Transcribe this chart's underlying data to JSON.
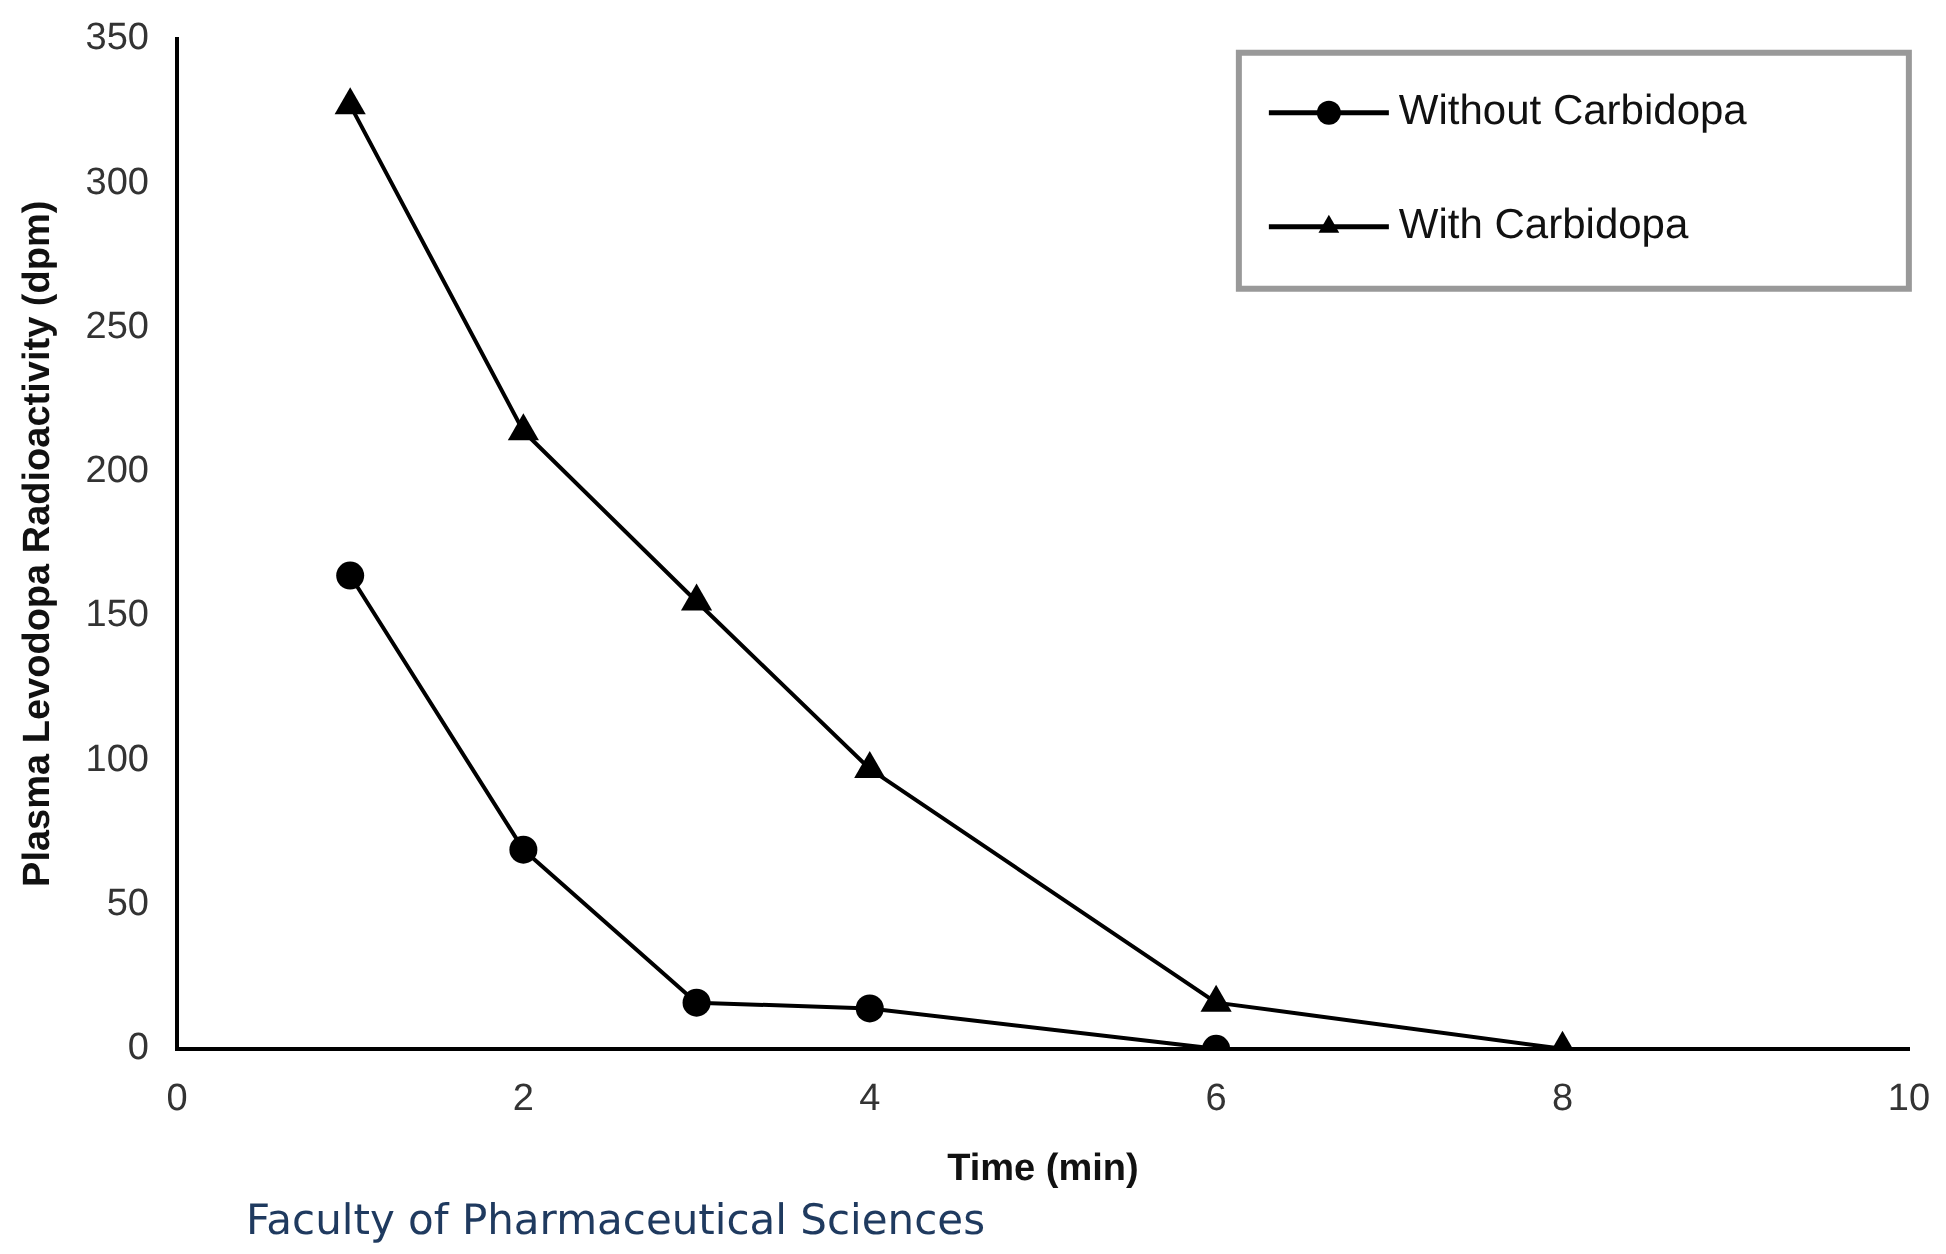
{
  "chart_data": {
    "type": "line",
    "xlabel": "Time (min)",
    "ylabel": "Plasma Levodopa Radioactivity (dpm)",
    "annotations": [
      "Faculty of Pharmaceutical Sciences"
    ],
    "xlim": [
      0,
      10
    ],
    "xticks": [
      0,
      2,
      4,
      6,
      8,
      10
    ],
    "ylim": [
      0,
      350
    ],
    "yticks": [
      0,
      50,
      100,
      150,
      200,
      250,
      300,
      350
    ],
    "grid": false,
    "legend": "top right",
    "line_style": "solid",
    "series": [
      {
        "name": "Without Carbidopa",
        "color": "#000000",
        "marker": "circle",
        "x": [
          1,
          2,
          3,
          4,
          6
        ],
        "values": [
          164,
          69,
          16,
          14,
          0
        ]
      },
      {
        "name": "With Carbidopa",
        "color": "#000000",
        "marker": "triangle",
        "x": [
          1,
          2,
          3,
          4,
          6,
          8
        ],
        "values": [
          327,
          214,
          155,
          97,
          16,
          0
        ]
      }
    ]
  }
}
